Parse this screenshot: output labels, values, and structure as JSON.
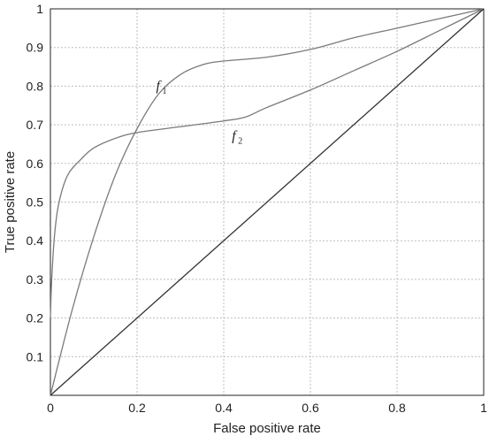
{
  "chart_data": {
    "type": "line",
    "title": "",
    "xlabel": "False positive rate",
    "ylabel": "True positive rate",
    "xlim": [
      0,
      1
    ],
    "ylim": [
      0,
      1
    ],
    "xticks": [
      "0",
      "0.2",
      "0.4",
      "0.6",
      "0.8",
      "1"
    ],
    "yticks": [
      "0.1",
      "0.2",
      "0.3",
      "0.4",
      "0.5",
      "0.6",
      "0.7",
      "0.8",
      "0.9",
      "1"
    ],
    "grid": true,
    "series": [
      {
        "name": "f1",
        "x": [
          0,
          0.05,
          0.1,
          0.15,
          0.2,
          0.25,
          0.3,
          0.35,
          0.4,
          0.5,
          0.6,
          0.7,
          0.8,
          0.9,
          1.0
        ],
        "y": [
          0,
          0.22,
          0.41,
          0.57,
          0.69,
          0.78,
          0.83,
          0.855,
          0.865,
          0.875,
          0.895,
          0.925,
          0.95,
          0.975,
          1.0
        ]
      },
      {
        "name": "f2",
        "x": [
          0,
          0.003,
          0.01,
          0.02,
          0.04,
          0.07,
          0.1,
          0.15,
          0.2,
          0.3,
          0.4,
          0.45,
          0.5,
          0.6,
          0.7,
          0.8,
          0.9,
          1.0
        ],
        "y": [
          0.2,
          0.3,
          0.42,
          0.5,
          0.57,
          0.61,
          0.64,
          0.665,
          0.68,
          0.695,
          0.71,
          0.72,
          0.745,
          0.79,
          0.84,
          0.89,
          0.945,
          1.0
        ]
      },
      {
        "name": "",
        "x": [
          0,
          1
        ],
        "y": [
          0,
          1
        ]
      }
    ],
    "annotations": [
      {
        "main": "f",
        "sub": "1",
        "x": 0.25,
        "y": 0.79
      },
      {
        "main": "f",
        "sub": "2",
        "x": 0.425,
        "y": 0.66
      }
    ]
  }
}
